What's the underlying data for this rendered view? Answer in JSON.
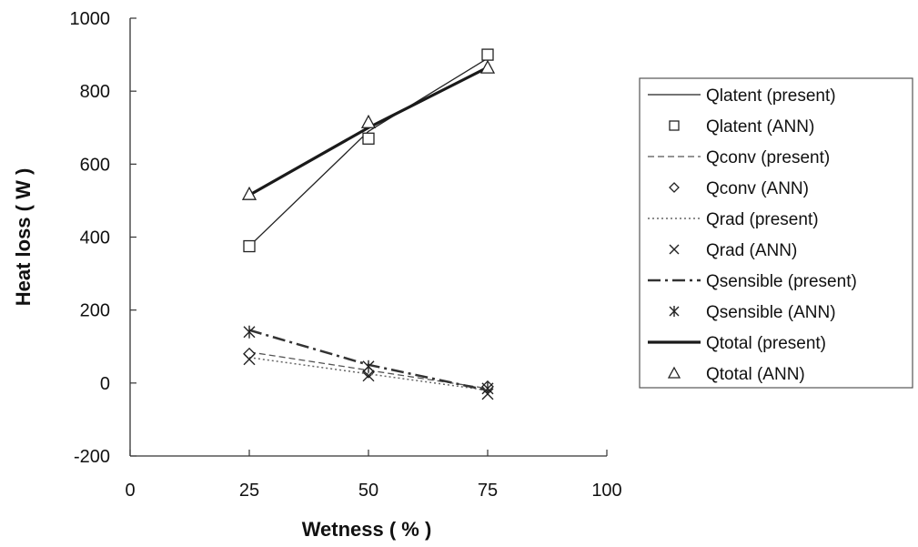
{
  "chart_data": {
    "type": "line",
    "title": "",
    "xlabel": "Wetness ( % )",
    "ylabel": "Heat loss ( W )",
    "xlim": [
      0,
      100
    ],
    "ylim": [
      -200,
      1000
    ],
    "xticks": [
      0,
      25,
      50,
      75,
      100
    ],
    "yticks": [
      -200,
      0,
      200,
      400,
      600,
      800,
      1000
    ],
    "grid": false,
    "legend_position": "right",
    "x": [
      25,
      50,
      75
    ],
    "series": [
      {
        "name": "Qlatent (present)",
        "values": [
          375,
          690,
          890
        ],
        "style": "line",
        "dash": "solid",
        "width": 1.3,
        "color": "#222222"
      },
      {
        "name": "Qlatent (ANN)",
        "values": [
          375,
          670,
          900
        ],
        "style": "marker",
        "marker": "square",
        "color": "#222222"
      },
      {
        "name": "Qconv (present)",
        "values": [
          85,
          35,
          -15
        ],
        "style": "line",
        "dash": "dashed",
        "width": 1.3,
        "color": "#555555"
      },
      {
        "name": "Qconv (ANN)",
        "values": [
          80,
          30,
          -10
        ],
        "style": "marker",
        "marker": "diamond",
        "color": "#222222"
      },
      {
        "name": "Qrad (present)",
        "values": [
          70,
          25,
          -20
        ],
        "style": "line",
        "dash": "dotted",
        "width": 1.5,
        "color": "#666666"
      },
      {
        "name": "Qrad (ANN)",
        "values": [
          65,
          20,
          -30
        ],
        "style": "marker",
        "marker": "x",
        "color": "#222222"
      },
      {
        "name": "Qsensible (present)",
        "values": [
          145,
          50,
          -20
        ],
        "style": "line",
        "dash": "dashdot",
        "width": 2.5,
        "color": "#333333"
      },
      {
        "name": "Qsensible (ANN)",
        "values": [
          140,
          45,
          -15
        ],
        "style": "marker",
        "marker": "asterisk",
        "color": "#222222"
      },
      {
        "name": "Qtotal (present)",
        "values": [
          515,
          700,
          865
        ],
        "style": "line",
        "dash": "solid",
        "width": 3.2,
        "color": "#1a1a1a"
      },
      {
        "name": "Qtotal (ANN)",
        "values": [
          518,
          715,
          865
        ],
        "style": "marker",
        "marker": "triangle",
        "color": "#222222"
      }
    ]
  }
}
